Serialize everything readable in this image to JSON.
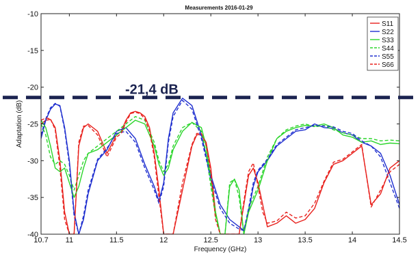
{
  "chart_data": {
    "type": "line",
    "title": "Measurements 2016-01-29",
    "xlabel": "Frequency (GHz)",
    "ylabel": "Adaptation (dB)",
    "xlim": [
      10.7,
      14.5
    ],
    "ylim": [
      -40,
      -10
    ],
    "xticks": [
      10.7,
      11,
      11.5,
      12,
      12.5,
      13,
      13.5,
      14,
      14.5
    ],
    "xtick_labels": [
      "10.7",
      "11",
      "11.5",
      "12",
      "12.5",
      "13",
      "13.5",
      "14",
      "14.5"
    ],
    "yticks": [
      -40,
      -35,
      -30,
      -25,
      -20,
      -15,
      -10
    ],
    "ytick_labels": [
      "-40",
      "-35",
      "-30",
      "-25",
      "-20",
      "-15",
      "-10"
    ],
    "grid": false,
    "legend_position": "top-right",
    "annotation": {
      "text": "-21,4 dB",
      "y": -21.4,
      "color": "#1b2350",
      "style": "dashed"
    },
    "series": [
      {
        "name": "S11",
        "color": "#e8201c",
        "dash": "solid",
        "x": [
          10.7,
          10.75,
          10.8,
          10.85,
          10.9,
          10.95,
          11.0,
          11.05,
          11.1,
          11.15,
          11.2,
          11.3,
          11.4,
          11.5,
          11.55,
          11.6,
          11.65,
          11.7,
          11.75,
          11.8,
          11.85,
          11.9,
          11.95,
          12.0,
          12.1,
          12.2,
          12.3,
          12.35,
          12.4,
          12.45,
          12.5,
          12.55,
          12.6,
          12.7,
          12.8,
          12.85,
          12.9,
          12.95,
          13.0,
          13.05,
          13.1,
          13.2,
          13.3,
          13.4,
          13.5,
          13.6,
          13.7,
          13.8,
          13.9,
          14.0,
          14.1,
          14.2,
          14.3,
          14.4,
          14.5
        ],
        "values": [
          -25,
          -24.5,
          -24.4,
          -25.5,
          -30,
          -37,
          -40,
          -40,
          -28,
          -25.5,
          -25,
          -26,
          -29,
          -26.5,
          -26,
          -24.5,
          -23.5,
          -23.3,
          -23.5,
          -24,
          -25.5,
          -29,
          -34,
          -40,
          -40,
          -34,
          -28,
          -26.5,
          -26.4,
          -27.5,
          -31,
          -37,
          -40,
          -40,
          -40,
          -36,
          -32,
          -31,
          -33,
          -36,
          -39,
          -38.5,
          -37.5,
          -38.5,
          -38,
          -36.5,
          -33,
          -30.5,
          -30,
          -29,
          -28,
          -36,
          -34.5,
          -31,
          -30
        ]
      },
      {
        "name": "S22",
        "color": "#1f2fcf",
        "dash": "solid",
        "x": [
          10.7,
          10.75,
          10.8,
          10.85,
          10.9,
          10.95,
          11.0,
          11.05,
          11.1,
          11.15,
          11.2,
          11.3,
          11.4,
          11.5,
          11.6,
          11.7,
          11.8,
          11.9,
          11.95,
          12.0,
          12.05,
          12.1,
          12.2,
          12.3,
          12.4,
          12.5,
          12.6,
          12.7,
          12.8,
          12.85,
          12.9,
          12.95,
          13.0,
          13.1,
          13.2,
          13.3,
          13.4,
          13.5,
          13.6,
          13.7,
          13.8,
          13.9,
          14.0,
          14.1,
          14.2,
          14.3,
          14.4,
          14.5
        ],
        "values": [
          -27,
          -24.5,
          -23,
          -22.3,
          -22.5,
          -25.5,
          -30,
          -37,
          -40,
          -38,
          -34.5,
          -30,
          -28.5,
          -26,
          -25.5,
          -27,
          -30.5,
          -33.5,
          -35.5,
          -33,
          -27,
          -23.5,
          -21.5,
          -22.5,
          -26.5,
          -32,
          -36,
          -38,
          -39,
          -39.5,
          -37,
          -33.5,
          -31.5,
          -30,
          -28,
          -27,
          -26,
          -25.8,
          -25,
          -25.5,
          -25.6,
          -26.2,
          -26.5,
          -27.5,
          -28,
          -29,
          -32,
          -36
        ]
      },
      {
        "name": "S33",
        "color": "#2ad52a",
        "dash": "solid",
        "x": [
          10.7,
          10.75,
          10.8,
          10.85,
          10.9,
          10.95,
          11.0,
          11.05,
          11.1,
          11.15,
          11.2,
          11.3,
          11.4,
          11.5,
          11.6,
          11.7,
          11.8,
          11.9,
          11.95,
          12.0,
          12.05,
          12.1,
          12.2,
          12.3,
          12.4,
          12.45,
          12.5,
          12.55,
          12.6,
          12.65,
          12.7,
          12.75,
          12.8,
          12.85,
          12.9,
          13.0,
          13.1,
          13.2,
          13.3,
          13.4,
          13.5,
          13.6,
          13.7,
          13.8,
          13.9,
          14.0,
          14.1,
          14.2,
          14.3,
          14.4,
          14.5
        ],
        "values": [
          -24.5,
          -25.5,
          -28,
          -31,
          -31.5,
          -31,
          -33,
          -35,
          -33.5,
          -31,
          -29,
          -28.5,
          -27.5,
          -26.5,
          -25.5,
          -24.5,
          -25,
          -28,
          -30.5,
          -32,
          -31,
          -28.5,
          -26,
          -24.8,
          -25.5,
          -28,
          -32.5,
          -37,
          -40,
          -40,
          -33.5,
          -32.5,
          -34,
          -40,
          -37,
          -34,
          -30,
          -27,
          -26,
          -25.5,
          -25.2,
          -25.3,
          -25,
          -25.5,
          -26.5,
          -26.8,
          -27.5,
          -27.3,
          -27.8,
          -27.6,
          -27.7
        ]
      },
      {
        "name": "S44",
        "color": "#2ad52a",
        "dash": "dashed",
        "x": [
          10.7,
          10.75,
          10.8,
          10.85,
          10.9,
          10.95,
          11.0,
          11.05,
          11.1,
          11.15,
          11.2,
          11.3,
          11.4,
          11.5,
          11.6,
          11.7,
          11.8,
          11.9,
          11.95,
          12.0,
          12.05,
          12.1,
          12.2,
          12.3,
          12.4,
          12.45,
          12.5,
          12.55,
          12.6,
          12.65,
          12.7,
          12.75,
          12.8,
          12.85,
          12.9,
          13.0,
          13.1,
          13.2,
          13.3,
          13.4,
          13.5,
          13.6,
          13.7,
          13.8,
          13.9,
          14.0,
          14.1,
          14.2,
          14.3,
          14.4,
          14.5
        ],
        "values": [
          -25,
          -26.5,
          -29.5,
          -30.5,
          -30,
          -30.5,
          -32,
          -34,
          -32,
          -30,
          -29,
          -28,
          -27,
          -26,
          -25,
          -24,
          -24.5,
          -27.5,
          -30,
          -31.5,
          -30.5,
          -28,
          -25.5,
          -24.8,
          -26,
          -29,
          -33.5,
          -37.5,
          -40,
          -40,
          -33,
          -32.5,
          -35,
          -40,
          -36.5,
          -33.5,
          -29.5,
          -27,
          -25.8,
          -25.3,
          -25,
          -25.4,
          -25.2,
          -25.8,
          -26.2,
          -26.5,
          -27,
          -27,
          -27.3,
          -27.2,
          -27.3
        ]
      },
      {
        "name": "S55",
        "color": "#1f2fcf",
        "dash": "dashed",
        "x": [
          10.7,
          10.75,
          10.8,
          10.85,
          10.9,
          10.95,
          11.0,
          11.05,
          11.1,
          11.15,
          11.2,
          11.3,
          11.4,
          11.5,
          11.6,
          11.7,
          11.8,
          11.9,
          11.95,
          12.0,
          12.05,
          12.1,
          12.2,
          12.3,
          12.4,
          12.5,
          12.6,
          12.7,
          12.8,
          12.85,
          12.9,
          12.95,
          13.0,
          13.1,
          13.2,
          13.3,
          13.4,
          13.5,
          13.6,
          13.7,
          13.8,
          13.9,
          14.0,
          14.1,
          14.2,
          14.3,
          14.4,
          14.5
        ],
        "values": [
          -26.5,
          -24.3,
          -22.8,
          -22.2,
          -22.6,
          -25.8,
          -30.5,
          -37.5,
          -40,
          -37.5,
          -34,
          -29.8,
          -28.3,
          -26.3,
          -26,
          -27.5,
          -31,
          -34,
          -35.8,
          -33.5,
          -27.5,
          -24,
          -21.8,
          -23,
          -27,
          -32.5,
          -36.5,
          -38.5,
          -39.3,
          -39.5,
          -36.5,
          -33,
          -31.3,
          -29.8,
          -27.8,
          -26.8,
          -25.8,
          -25.5,
          -25.2,
          -25.3,
          -25.4,
          -26,
          -26.3,
          -27.3,
          -28,
          -29.5,
          -33,
          -36.5
        ]
      },
      {
        "name": "S66",
        "color": "#e8201c",
        "dash": "dashed",
        "x": [
          10.7,
          10.75,
          10.8,
          10.85,
          10.9,
          10.95,
          11.0,
          11.05,
          11.1,
          11.15,
          11.2,
          11.3,
          11.4,
          11.5,
          11.55,
          11.6,
          11.65,
          11.7,
          11.75,
          11.8,
          11.85,
          11.9,
          11.95,
          12.0,
          12.1,
          12.2,
          12.3,
          12.35,
          12.4,
          12.45,
          12.5,
          12.55,
          12.6,
          12.7,
          12.8,
          12.85,
          12.9,
          12.95,
          13.0,
          13.05,
          13.1,
          13.2,
          13.3,
          13.4,
          13.5,
          13.6,
          13.7,
          13.8,
          13.9,
          14.0,
          14.1,
          14.2,
          14.3,
          14.4,
          14.5
        ],
        "values": [
          -24.5,
          -24.2,
          -24.3,
          -25.8,
          -31,
          -38,
          -40,
          -40,
          -27.5,
          -25.3,
          -25.2,
          -26.5,
          -29.5,
          -26.8,
          -26.3,
          -24.8,
          -23.6,
          -23.4,
          -23.6,
          -24.3,
          -26,
          -29.5,
          -35,
          -40,
          -40,
          -33,
          -27.8,
          -26.3,
          -26.3,
          -27.8,
          -31.5,
          -38,
          -40,
          -40,
          -40,
          -35.5,
          -31.5,
          -30.3,
          -33.5,
          -37,
          -38.5,
          -38.2,
          -37,
          -37.8,
          -37.5,
          -35.8,
          -32.8,
          -30.2,
          -29.8,
          -28.8,
          -27.8,
          -36.3,
          -34,
          -31.5,
          -30.5
        ]
      }
    ]
  }
}
